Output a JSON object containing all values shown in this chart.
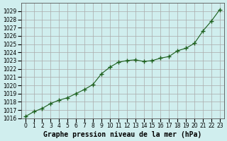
{
  "x": [
    0,
    1,
    2,
    3,
    4,
    5,
    6,
    7,
    8,
    9,
    10,
    11,
    12,
    13,
    14,
    15,
    16,
    17,
    18,
    19,
    20,
    21,
    22,
    23
  ],
  "y": [
    1016.2,
    1016.8,
    1017.2,
    1017.8,
    1018.2,
    1018.5,
    1019.0,
    1019.5,
    1020.1,
    1021.4,
    1022.2,
    1022.8,
    1023.0,
    1023.1,
    1022.9,
    1023.0,
    1023.3,
    1023.5,
    1024.2,
    1024.5,
    1025.1,
    1026.6,
    1027.8,
    1029.2
  ],
  "line_color": "#1a5e1a",
  "marker": "+",
  "bg_color": "#d0eeee",
  "grid_color": "#aaaaaa",
  "xlabel": "Graphe pression niveau de la mer (hPa)",
  "ylim_min": 1016,
  "ylim_max": 1030,
  "yticks": [
    1016,
    1017,
    1018,
    1019,
    1020,
    1021,
    1022,
    1023,
    1024,
    1025,
    1026,
    1027,
    1028,
    1029
  ],
  "xticks": [
    0,
    1,
    2,
    3,
    4,
    5,
    6,
    7,
    8,
    9,
    10,
    11,
    12,
    13,
    14,
    15,
    16,
    17,
    18,
    19,
    20,
    21,
    22,
    23
  ],
  "tick_fontsize": 5.5,
  "xlabel_fontsize": 7
}
